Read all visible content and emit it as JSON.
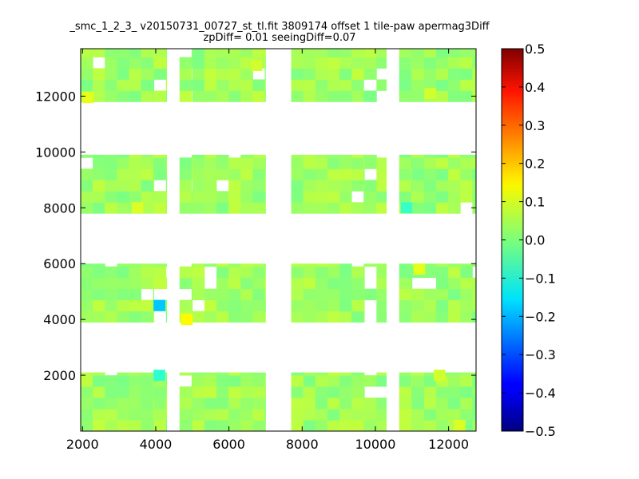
{
  "title": {
    "line1": "_smc_1_2_3_ v20150731_00727_st_tl.fit 3809174 offset 1 tile-paw apermag3Diff",
    "line2": "zpDiff= 0.01 seeingDiff=0.07"
  },
  "chart_data": {
    "type": "heatmap",
    "xlim": [
      1950,
      12750
    ],
    "ylim": [
      0,
      13700
    ],
    "x_ticks": [
      2000,
      4000,
      6000,
      8000,
      10000,
      12000
    ],
    "y_ticks": [
      2000,
      4000,
      6000,
      8000,
      10000,
      12000
    ],
    "colorbar": {
      "colormap": "jet",
      "range": [
        -0.5,
        0.5
      ],
      "ticks": [
        0.5,
        0.4,
        0.3,
        0.2,
        0.1,
        0.0,
        -0.1,
        -0.2,
        -0.3,
        -0.4,
        -0.5
      ],
      "tick_labels": [
        "0.5",
        "0.4",
        "0.3",
        "0.2",
        "0.1",
        "0.0",
        "−0.1",
        "−0.2",
        "−0.3",
        "−0.4",
        "−0.5"
      ]
    },
    "cell_width": 330,
    "cell_height": 400,
    "x_groups": [
      [
        1950,
        3950
      ],
      [
        3950,
        4300
      ],
      [
        4650,
        5000
      ],
      [
        5000,
        7000
      ],
      [
        7700,
        9700
      ],
      [
        9700,
        10300
      ],
      [
        10650,
        11000
      ],
      [
        11000,
        12750
      ]
    ],
    "y_bands": [
      [
        0,
        2100
      ],
      [
        3900,
        6000
      ],
      [
        7800,
        9900
      ],
      [
        11800,
        13700
      ]
    ],
    "typical_value": 0.03,
    "outliers": [
      {
        "x": 4100,
        "y": 4500,
        "value": -0.18
      },
      {
        "x": 4850,
        "y": 4000,
        "value": 0.13
      },
      {
        "x": 4100,
        "y": 2000,
        "value": -0.08
      },
      {
        "x": 11200,
        "y": 5800,
        "value": 0.1
      },
      {
        "x": 10850,
        "y": 8000,
        "value": -0.07
      },
      {
        "x": 2150,
        "y": 11950,
        "value": 0.1
      },
      {
        "x": 3500,
        "y": 8000,
        "value": 0.09
      },
      {
        "x": 6750,
        "y": 13100,
        "value": 0.08
      },
      {
        "x": 12300,
        "y": 200,
        "value": 0.09
      },
      {
        "x": 11750,
        "y": 2000,
        "value": 0.08
      },
      {
        "x": 11500,
        "y": 12100,
        "value": 0.08
      }
    ]
  }
}
